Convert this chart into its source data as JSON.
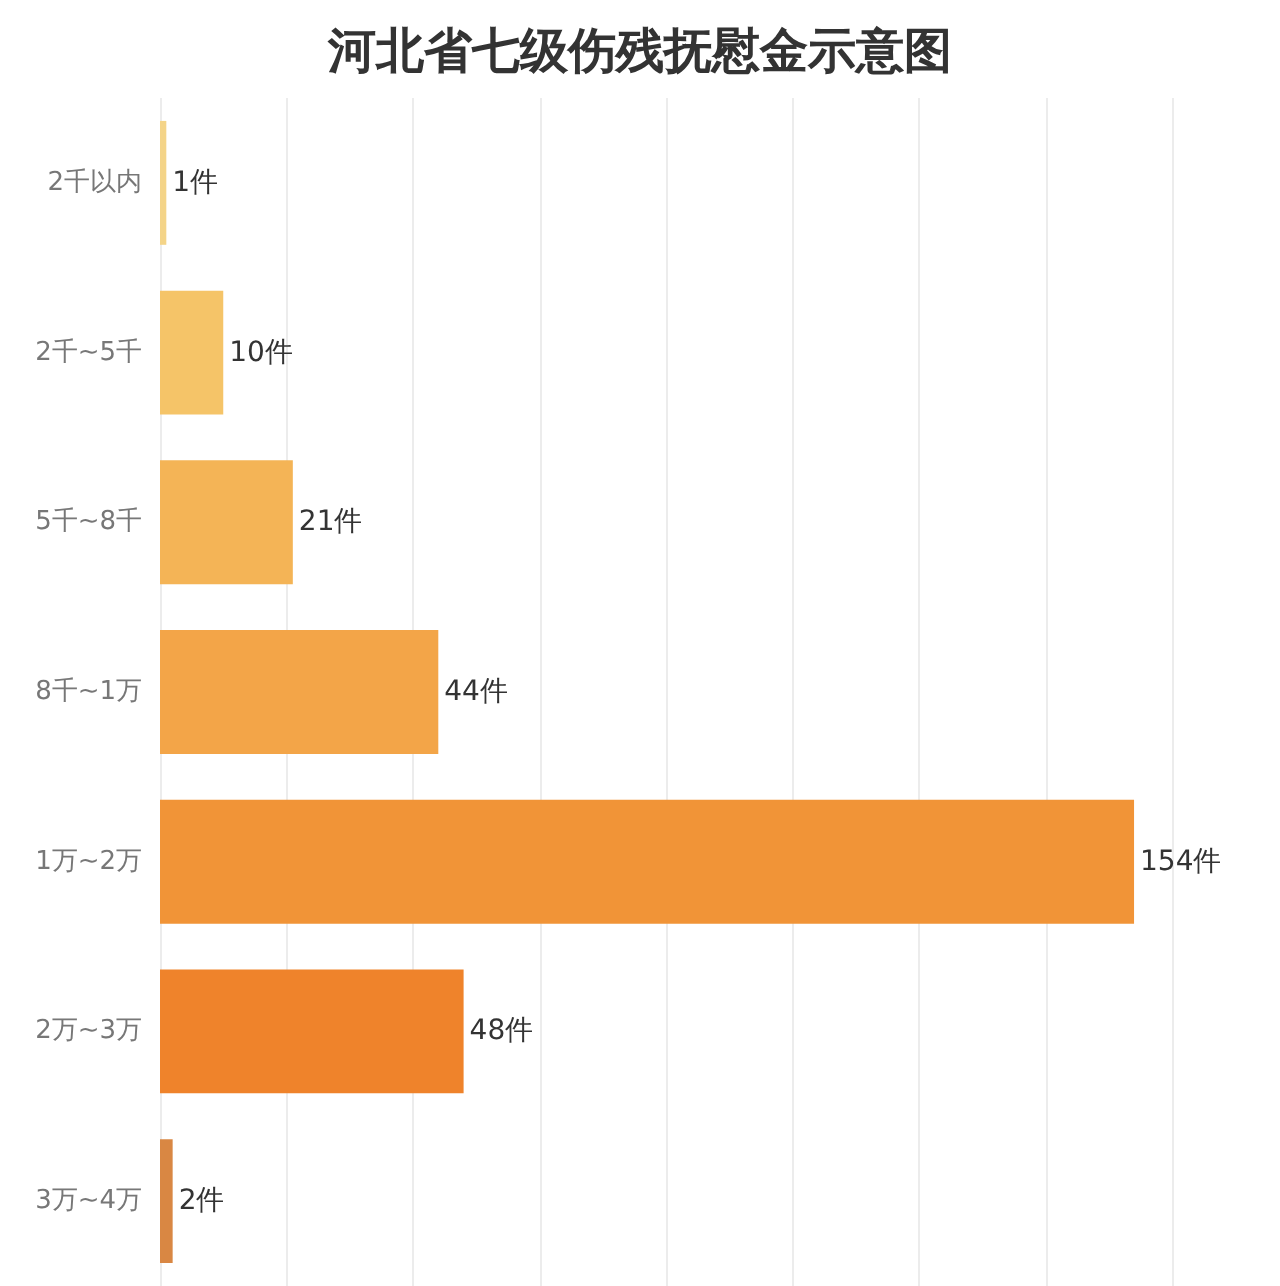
{
  "chart_data": {
    "type": "bar",
    "orientation": "horizontal",
    "title": "河北省七级伤残抚慰金示意图",
    "categories": [
      "2千以内",
      "2千~5千",
      "5千~8千",
      "8千~1万",
      "1万~2万",
      "2万~3万",
      "3万~4万"
    ],
    "values": [
      1,
      10,
      21,
      44,
      154,
      48,
      2
    ],
    "colors": [
      "#f4d488",
      "#f5c468",
      "#f4b456",
      "#f3a548",
      "#f19437",
      "#ef832b",
      "#d98743"
    ],
    "value_labels": [
      "1件",
      "10件",
      "21件",
      "44件",
      "154件",
      "48件",
      "2件"
    ],
    "xlim": [
      0,
      160
    ],
    "xticks": [
      {
        "value": 0,
        "label": null
      },
      {
        "value": 20,
        "label": null
      },
      {
        "value": 40,
        "label": null
      },
      {
        "value": 60,
        "label": null
      },
      {
        "value": 80,
        "label": null
      },
      {
        "value": 100,
        "label": null
      },
      {
        "value": 120,
        "label": null
      },
      {
        "value": 140,
        "label": null
      },
      {
        "value": 160,
        "label": null
      }
    ],
    "grid": "x",
    "tick_labels": "y"
  }
}
